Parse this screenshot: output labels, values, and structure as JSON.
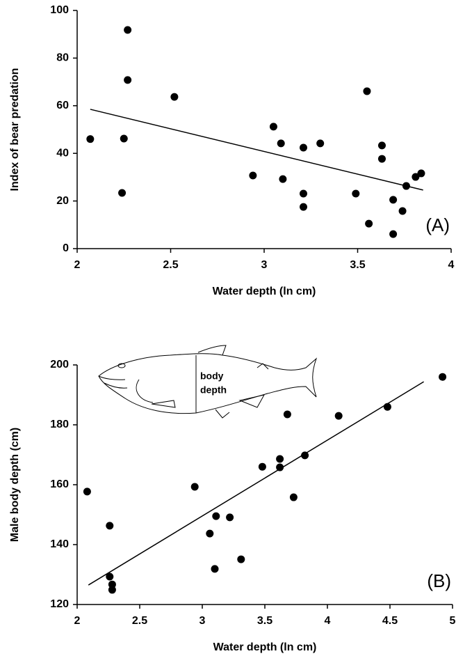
{
  "chart_data": [
    {
      "type": "scatter",
      "x_label": "Water depth (ln cm)",
      "y_label": "Index of bear predation",
      "annotation": "(A)",
      "x": [
        2.07,
        2.27,
        2.27,
        2.25,
        2.24,
        2.52,
        2.94,
        3.05,
        3.09,
        3.1,
        3.21,
        3.21,
        3.21,
        3.3,
        3.49,
        3.55,
        3.56,
        3.63,
        3.63,
        3.69,
        3.69,
        3.74,
        3.76,
        3.81,
        3.84
      ],
      "values": [
        46,
        91.8,
        70.8,
        46.2,
        23.4,
        63.7,
        30.7,
        51.2,
        44.2,
        29.2,
        42.4,
        23.1,
        17.5,
        44.2,
        23.1,
        66.1,
        10.5,
        43.3,
        37.7,
        20.5,
        6.1,
        15.8,
        26.3,
        30.1,
        31.6
      ],
      "color": "#000000",
      "fit_line": {
        "x": [
          2.07,
          3.85
        ],
        "y": [
          58.5,
          24.6
        ]
      },
      "xlim": [
        2,
        4
      ],
      "xticks": [
        2,
        2.5,
        3,
        3.5,
        4
      ],
      "ylim": [
        0,
        100
      ],
      "yticks": [
        0,
        20,
        40,
        60,
        80,
        100
      ]
    },
    {
      "type": "scatter",
      "x_label": "Water depth (ln cm)",
      "y_label": "Male body depth (cm)",
      "annotation": "(B)",
      "inset_label": [
        "body",
        "depth"
      ],
      "x": [
        2.08,
        2.26,
        2.26,
        2.28,
        2.28,
        2.94,
        3.06,
        3.11,
        3.1,
        3.22,
        3.31,
        3.48,
        3.62,
        3.62,
        3.68,
        3.73,
        3.82,
        4.09,
        4.48,
        4.92
      ],
      "values": [
        157.7,
        146.3,
        129.3,
        126.7,
        124.9,
        159.3,
        143.7,
        149.5,
        131.9,
        149.1,
        135.1,
        166,
        168.6,
        165.8,
        183.5,
        155.8,
        169.8,
        183,
        186,
        196
      ],
      "color": "#000000",
      "fit_line": {
        "x": [
          2.09,
          4.77
        ],
        "y": [
          126.5,
          194.4
        ]
      },
      "xlim": [
        2,
        5
      ],
      "xticks": [
        2,
        2.5,
        3,
        3.5,
        4,
        4.5,
        5
      ],
      "ylim": [
        120,
        200
      ],
      "yticks": [
        120,
        140,
        160,
        180,
        200
      ]
    }
  ]
}
